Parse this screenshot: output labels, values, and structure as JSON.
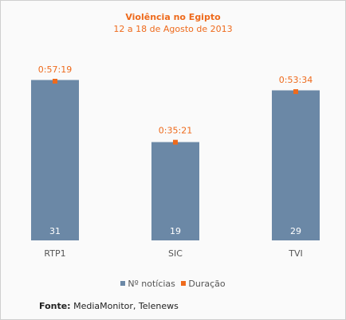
{
  "colors": {
    "bar": "#6b88a6",
    "marker": "#ee6a1c",
    "title": "#ee6a1c",
    "axis_text": "#555555"
  },
  "title": "Violência no Egipto",
  "subtitle": "12 a 18 de Agosto de 2013",
  "legend": {
    "noticias": "Nº notícias",
    "duracao": "Duração"
  },
  "source": {
    "label": "Fonte:",
    "text": " MediaMonitor, Telenews"
  },
  "chart_data": {
    "type": "bar",
    "title": "Violência no Egipto",
    "subtitle": "12 a 18 de Agosto de 2013",
    "categories": [
      "RTP1",
      "SIC",
      "TVI"
    ],
    "series": [
      {
        "name": "Nº notícias",
        "type": "bar",
        "values": [
          31,
          19,
          29
        ]
      },
      {
        "name": "Duração",
        "type": "marker",
        "values": [
          "0:57:19",
          "0:35:21",
          "0:53:34"
        ]
      }
    ],
    "xlabel": "",
    "ylabel": "",
    "grid": false,
    "legend_position": "bottom"
  }
}
